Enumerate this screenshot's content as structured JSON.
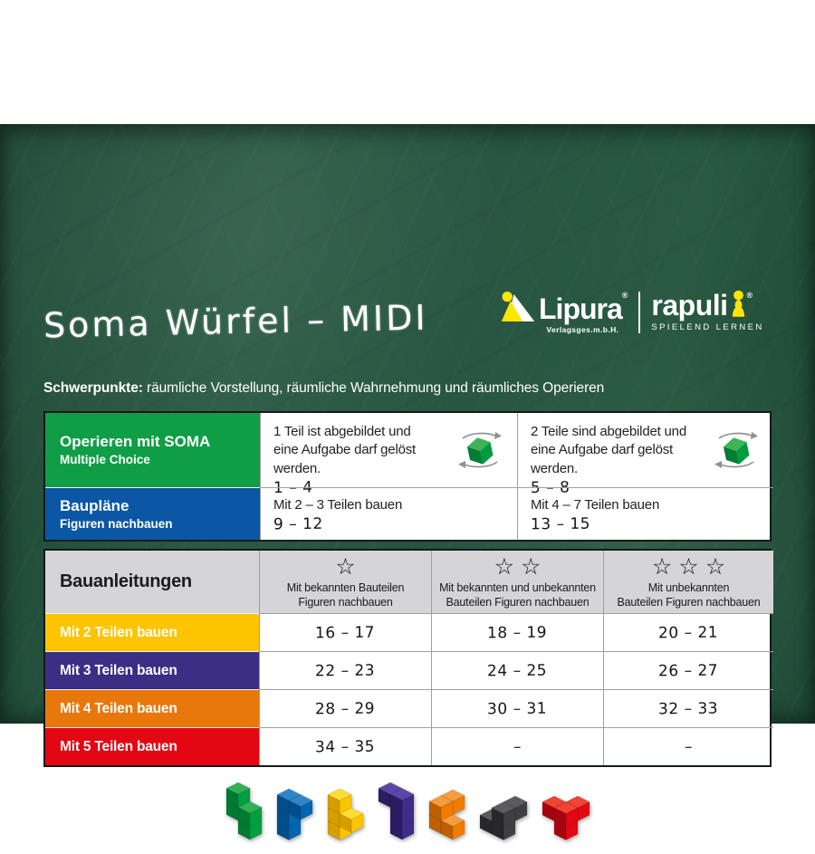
{
  "title": "Soma Würfel – MIDI",
  "logos": {
    "accent": "#ffe500",
    "lipura": {
      "name": "Lipura",
      "registered": "®",
      "subtitle": "Verlagsges.m.b.H."
    },
    "rapuli": {
      "name": "rapuli",
      "registered": "®",
      "subtitle": "SPIELEND LERNEN"
    }
  },
  "focus_line": {
    "label": "Schwerpunkte:",
    "text": "räumliche Vorstellung, räumliche Wahrnehmung und räumliches Operieren"
  },
  "cube_icon": {
    "top": "#3cb557",
    "left": "#007c33",
    "right": "#009b3e",
    "arrow": "#8f9194"
  },
  "table1": {
    "rows": [
      {
        "title": "Operieren mit SOMA",
        "subtitle": "Multiple Choice",
        "color": "#0f9e45",
        "cells": [
          {
            "text": "1 Teil ist abgebildet und eine Aufgabe darf gelöst werden.",
            "range": "1 – 4"
          },
          {
            "text": "2 Teile sind abgebildet und eine Aufgabe darf gelöst werden.",
            "range": "5 – 8"
          }
        ]
      },
      {
        "title": "Baupläne",
        "subtitle": "Figuren nachbauen",
        "color": "#0b57a6",
        "cells": [
          {
            "text": "Mit 2 – 3 Teilen bauen",
            "range": "9 – 12"
          },
          {
            "text": "Mit 4 – 7 Teilen bauen",
            "range": "13 – 15"
          }
        ]
      }
    ]
  },
  "table2": {
    "header": {
      "label": "Bauanleitungen",
      "background": "#d5d4d6",
      "columns": [
        {
          "stars": "☆",
          "line1": "Mit bekannten Bauteilen",
          "line2": "Figuren nachbauen"
        },
        {
          "stars": "☆☆",
          "line1": "Mit bekannten und unbekannten",
          "line2": "Bauteilen Figuren nachbauen"
        },
        {
          "stars": "☆☆☆",
          "line1": "Mit unbekannten",
          "line2": "Bauteilen Figuren nachbauen"
        }
      ]
    },
    "rows": [
      {
        "label": "Mit 2 Teilen bauen",
        "color": "#fdc400",
        "values": [
          "16 – 17",
          "18 – 19",
          "20 – 21"
        ]
      },
      {
        "label": "Mit 3 Teilen bauen",
        "color": "#3c2d85",
        "values": [
          "22 – 23",
          "24 – 25",
          "26 – 27"
        ]
      },
      {
        "label": "Mit 4 Teilen bauen",
        "color": "#e8780c",
        "values": [
          "28 – 29",
          "30 – 31",
          "32 – 33"
        ]
      },
      {
        "label": "Mit 5 Teilen bauen",
        "color": "#e30613",
        "values": [
          "34 – 35",
          "–",
          "–"
        ]
      }
    ]
  },
  "soma_pieces": [
    {
      "name": "green",
      "voxels": [
        [
          0,
          2,
          0
        ],
        [
          0,
          1,
          0
        ],
        [
          1,
          1,
          0
        ],
        [
          1,
          0,
          0
        ]
      ],
      "faces": {
        "top": "#2fb157",
        "left": "#007a31",
        "right": "#009f40"
      }
    },
    {
      "name": "blue",
      "voxels": [
        [
          0,
          2,
          0
        ],
        [
          1,
          2,
          0
        ],
        [
          0,
          1,
          0
        ],
        [
          0,
          0,
          0
        ]
      ],
      "faces": {
        "top": "#2e85c8",
        "left": "#004e8c",
        "right": "#0066b2"
      }
    },
    {
      "name": "yellow",
      "voxels": [
        [
          0,
          2,
          0
        ],
        [
          0,
          1,
          0
        ],
        [
          1,
          1,
          0
        ],
        [
          0,
          0,
          0
        ]
      ],
      "faces": {
        "top": "#ffdd33",
        "left": "#d79e00",
        "right": "#fcc300"
      }
    },
    {
      "name": "purple",
      "voxels": [
        [
          0,
          2,
          0
        ],
        [
          1,
          2,
          0
        ],
        [
          1,
          1,
          0
        ],
        [
          1,
          0,
          0
        ]
      ],
      "faces": {
        "top": "#5a48a8",
        "left": "#2a1d62",
        "right": "#3d2d87"
      }
    },
    {
      "name": "orange",
      "voxels": [
        [
          0,
          1,
          0
        ],
        [
          0,
          0,
          0
        ],
        [
          1,
          0,
          0
        ],
        [
          0,
          1,
          -1
        ]
      ],
      "faces": {
        "top": "#f49d3e",
        "left": "#bf5f00",
        "right": "#ee7d00"
      }
    },
    {
      "name": "black",
      "voxels": [
        [
          0,
          0,
          0
        ],
        [
          1,
          0,
          0
        ],
        [
          1,
          1,
          -1
        ],
        [
          1,
          1,
          0
        ]
      ],
      "faces": {
        "top": "#5b5b60",
        "left": "#28282b",
        "right": "#3e3e43"
      }
    },
    {
      "name": "red",
      "voxels": [
        [
          0,
          1,
          0
        ],
        [
          1,
          0,
          0
        ],
        [
          1,
          1,
          -1
        ],
        [
          1,
          1,
          0
        ]
      ],
      "faces": {
        "top": "#f04434",
        "left": "#a50510",
        "right": "#e30613"
      }
    }
  ]
}
